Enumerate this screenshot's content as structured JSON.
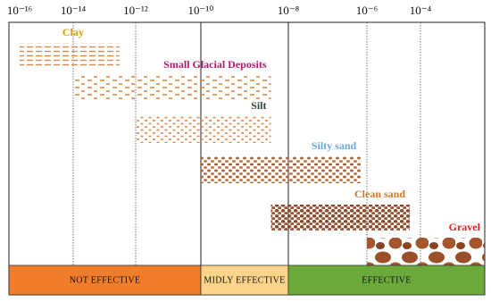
{
  "chart_data": {
    "type": "range",
    "x_scale": "log",
    "xlim": [
      4e-17,
      0.025
    ],
    "xticks": [
      {
        "value": 1e-16,
        "label": "10⁻¹⁶"
      },
      {
        "value": 1e-14,
        "label": "10⁻¹⁴"
      },
      {
        "value": 1e-12,
        "label": "10⁻¹²"
      },
      {
        "value": 1e-10,
        "label": "10⁻¹⁰"
      },
      {
        "value": 1e-08,
        "label": "10⁻⁸"
      },
      {
        "value": 1e-06,
        "label": "10⁻⁶"
      },
      {
        "value": 0.0001,
        "label": "10⁻⁴"
      }
    ],
    "series": [
      {
        "name": "Clay",
        "color": "#c9a200",
        "values": [
          1e-16,
          3e-13
        ]
      },
      {
        "name": "Small Glacial Deposits",
        "color": "#b3186c",
        "values": [
          1e-14,
          4e-09
        ]
      },
      {
        "name": "Silt",
        "color": "#2f4a2f",
        "values": [
          1e-12,
          4e-09
        ]
      },
      {
        "name": "Silty sand",
        "color": "#6aa8d8",
        "values": [
          1e-10,
          7e-07
        ]
      },
      {
        "name": "Clean sand",
        "color": "#d0782a",
        "values": [
          4e-09,
          4e-05
        ]
      },
      {
        "name": "Gravel",
        "color": "#e02020",
        "values": [
          1e-06,
          0.025
        ]
      }
    ],
    "zones": [
      {
        "label": "NOT EFFECTIVE",
        "color": "#f07d2c",
        "values": [
          4e-17,
          1e-10
        ]
      },
      {
        "label": "MIDLY EFFECTIVE",
        "color": "#fcd58a",
        "values": [
          1e-10,
          1e-08
        ]
      },
      {
        "label": "EFFECTIVE",
        "color": "#6aaa3a",
        "values": [
          1e-08,
          0.025
        ]
      }
    ]
  }
}
